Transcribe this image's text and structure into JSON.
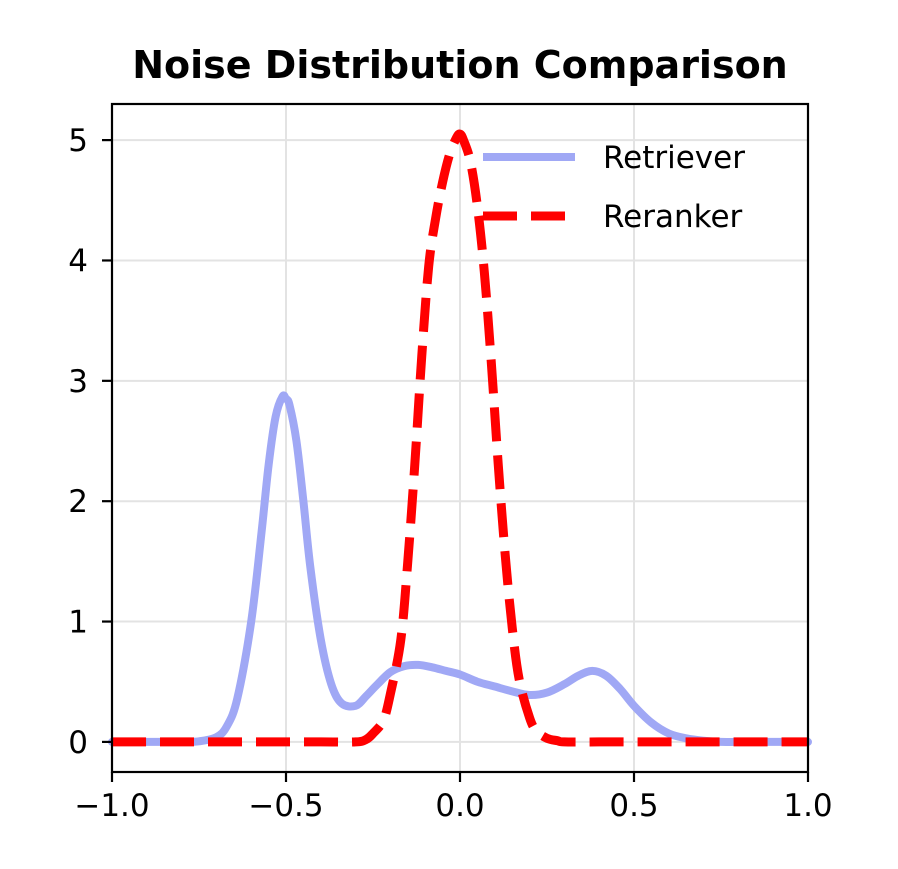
{
  "chart_data": {
    "type": "line",
    "title": "Noise Distribution Comparison",
    "xlabel": "",
    "ylabel": "",
    "xlim": [
      -1.0,
      1.0
    ],
    "ylim": [
      -0.25,
      5.3
    ],
    "grid": true,
    "legend_position": "top-right",
    "x_ticks": [
      -1.0,
      -0.5,
      0.0,
      0.5,
      1.0
    ],
    "x_tick_labels": [
      "−1.0",
      "−0.5",
      "0.0",
      "0.5",
      "1.0"
    ],
    "y_ticks": [
      0,
      1,
      2,
      3,
      4,
      5
    ],
    "y_tick_labels": [
      "0",
      "1",
      "2",
      "3",
      "4",
      "5"
    ],
    "series": [
      {
        "name": "Retriever",
        "color": "#a0a8f5",
        "style": "solid",
        "x": [
          -1.0,
          -0.9,
          -0.8,
          -0.75,
          -0.7,
          -0.67,
          -0.64,
          -0.6,
          -0.57,
          -0.55,
          -0.53,
          -0.51,
          -0.5,
          -0.49,
          -0.47,
          -0.45,
          -0.43,
          -0.4,
          -0.37,
          -0.34,
          -0.3,
          -0.27,
          -0.24,
          -0.2,
          -0.16,
          -0.12,
          -0.08,
          -0.04,
          0.0,
          0.05,
          0.1,
          0.15,
          0.2,
          0.25,
          0.3,
          0.34,
          0.38,
          0.42,
          0.46,
          0.5,
          0.55,
          0.6,
          0.65,
          0.7,
          0.75,
          0.8,
          0.9,
          1.0
        ],
        "y": [
          0.0,
          0.0,
          0.0,
          0.005,
          0.04,
          0.13,
          0.36,
          1.0,
          1.75,
          2.3,
          2.7,
          2.87,
          2.85,
          2.8,
          2.5,
          2.0,
          1.45,
          0.85,
          0.48,
          0.32,
          0.3,
          0.38,
          0.47,
          0.58,
          0.63,
          0.64,
          0.62,
          0.59,
          0.56,
          0.5,
          0.46,
          0.42,
          0.39,
          0.41,
          0.48,
          0.55,
          0.59,
          0.55,
          0.44,
          0.3,
          0.16,
          0.07,
          0.03,
          0.01,
          0.0,
          0.0,
          0.0,
          0.0
        ]
      },
      {
        "name": "Reranker",
        "color": "#ff0000",
        "style": "dashed",
        "x": [
          -1.0,
          -0.9,
          -0.8,
          -0.7,
          -0.6,
          -0.5,
          -0.4,
          -0.3,
          -0.27,
          -0.25,
          -0.22,
          -0.2,
          -0.17,
          -0.15,
          -0.13,
          -0.11,
          -0.09,
          -0.07,
          -0.05,
          -0.03,
          -0.01,
          0.0,
          0.01,
          0.03,
          0.05,
          0.07,
          0.09,
          0.11,
          0.13,
          0.15,
          0.17,
          0.2,
          0.22,
          0.25,
          0.28,
          0.3,
          0.4,
          0.5,
          0.6,
          0.7,
          0.8,
          0.9,
          1.0
        ],
        "y": [
          0.0,
          0.0,
          0.0,
          0.0,
          0.0,
          0.0,
          0.0,
          0.0,
          0.02,
          0.07,
          0.18,
          0.4,
          0.85,
          1.5,
          2.3,
          3.2,
          3.95,
          4.35,
          4.65,
          4.88,
          5.02,
          5.05,
          5.0,
          4.82,
          4.45,
          3.9,
          3.15,
          2.3,
          1.55,
          0.95,
          0.52,
          0.2,
          0.09,
          0.03,
          0.01,
          0.0,
          0.0,
          0.0,
          0.0,
          0.0,
          0.0,
          0.0,
          0.0
        ]
      }
    ]
  }
}
